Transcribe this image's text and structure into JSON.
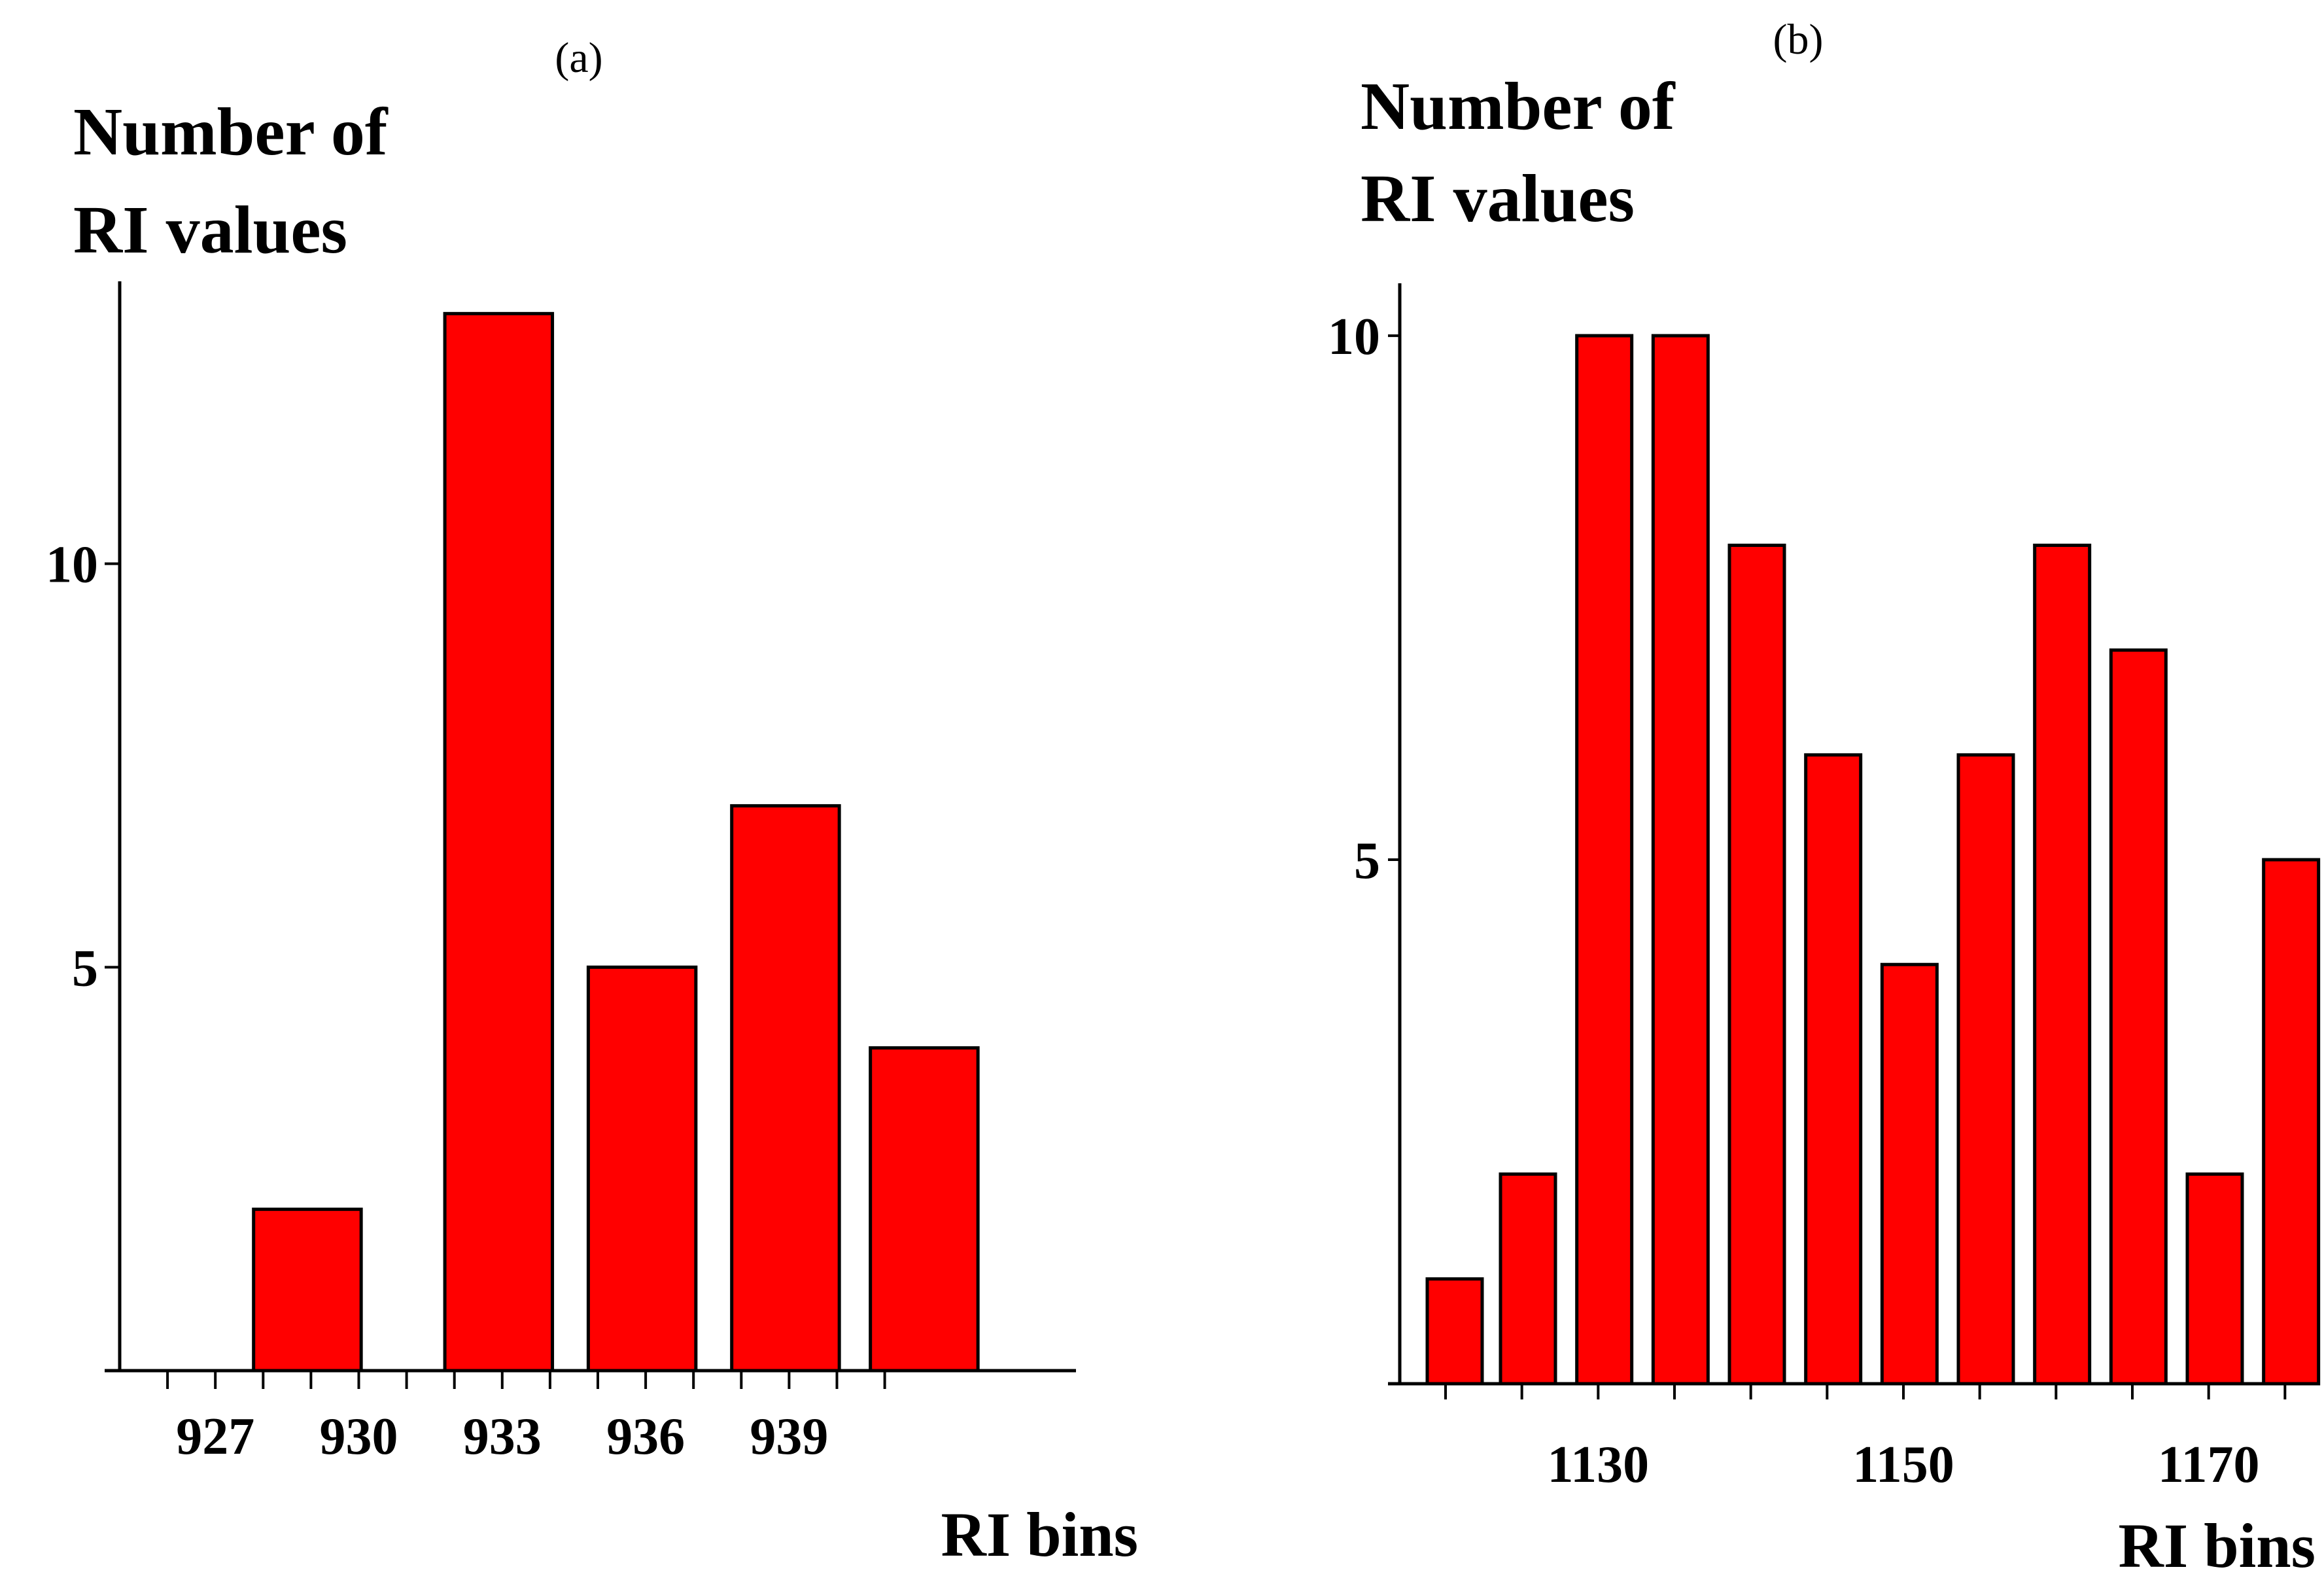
{
  "chart_data": [
    {
      "type": "bar",
      "panel_label": "(a)",
      "ylabel_lines": [
        "Number of",
        "RI values"
      ],
      "xlabel": "RI bins",
      "x_tick_labels": [
        "927",
        "930",
        "933",
        "936",
        "939"
      ],
      "x_tick_values": [
        927,
        930,
        933,
        936,
        939
      ],
      "y_tick_labels": [
        "5",
        "10"
      ],
      "y_tick_values": [
        5,
        10
      ],
      "bin_width": 2.25,
      "bars": [
        {
          "x_start": 927.8,
          "value": 2
        },
        {
          "x_start": 931.8,
          "value": 13.1
        },
        {
          "x_start": 934.8,
          "value": 5
        },
        {
          "x_start": 937.8,
          "value": 7
        },
        {
          "x_start": 940.7,
          "value": 4
        }
      ],
      "xlim": [
        925,
        945
      ],
      "ylim": [
        0,
        13.5
      ],
      "grid": false,
      "color": "#ff0000"
    },
    {
      "type": "bar",
      "panel_label": "(b)",
      "ylabel_lines": [
        "Number of",
        "RI values"
      ],
      "xlabel": "RI bins",
      "x_tick_labels": [
        "1130",
        "1150",
        "1170"
      ],
      "x_tick_values": [
        1130,
        1150,
        1170
      ],
      "y_tick_labels": [
        "5",
        "10"
      ],
      "y_tick_values": [
        5,
        10
      ],
      "bin_width": 3.6,
      "bars": [
        {
          "x_start": 1118.8,
          "value": 1
        },
        {
          "x_start": 1123.6,
          "value": 2
        },
        {
          "x_start": 1128.6,
          "value": 10
        },
        {
          "x_start": 1133.6,
          "value": 10
        },
        {
          "x_start": 1138.6,
          "value": 8
        },
        {
          "x_start": 1143.6,
          "value": 6
        },
        {
          "x_start": 1148.6,
          "value": 4
        },
        {
          "x_start": 1153.6,
          "value": 6
        },
        {
          "x_start": 1158.6,
          "value": 8
        },
        {
          "x_start": 1163.6,
          "value": 7
        },
        {
          "x_start": 1168.6,
          "value": 2
        },
        {
          "x_start": 1173.6,
          "value": 5
        }
      ],
      "xlim": [
        1117,
        1177
      ],
      "ylim": [
        0,
        10.5
      ],
      "grid": false,
      "color": "#ff0000"
    }
  ]
}
